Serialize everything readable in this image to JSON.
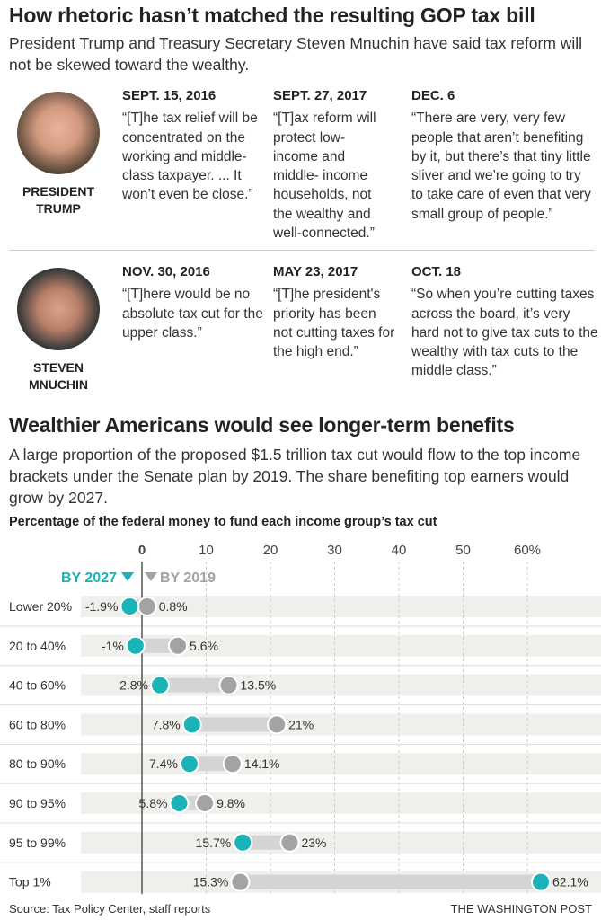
{
  "title": "How rhetoric hasn’t matched the resulting GOP tax bill",
  "dek": "President Trump and Treasury Secretary Steven Mnuchin have said tax reform will not be skewed toward the wealthy.",
  "people": [
    {
      "name": "PRESIDENT TRUMP",
      "quotes": [
        {
          "date": "SEPT. 15, 2016",
          "text": "“[T]he tax relief will be concentrated on the working and middle-class taxpayer. ... It won’t even be close.”"
        },
        {
          "date": "SEPT. 27, 2017",
          "text": "“[T]ax reform will protect low-income and middle- income households, not the wealthy and well-connected.”"
        },
        {
          "date": "DEC. 6",
          "text": "“There are very, very few people that aren’t benefiting by it, but there’s that tiny little sliver and we’re going to try to take care of even that very small group of people.”"
        }
      ]
    },
    {
      "name": "STEVEN MNUCHIN",
      "quotes": [
        {
          "date": "NOV. 30, 2016",
          "text": "“[T]here would be no absolute tax cut for the upper class.”"
        },
        {
          "date": "MAY 23, 2017",
          "text": "“[T]he president's priority has been not cutting taxes for the high end.”"
        },
        {
          "date": "OCT. 18",
          "text": "“So when you’re cutting taxes across the board, it’s very hard not to give tax cuts to the wealthy with tax cuts to the middle class.”"
        }
      ]
    }
  ],
  "section2": {
    "title": "Wealthier Americans would see longer-term benefits",
    "dek": "A large proportion of the proposed $1.5 trillion tax cut would flow to the top income brackets under the Senate plan by 2019. The share benefiting top earners would grow by 2027."
  },
  "chart_data": {
    "type": "dot-range",
    "title": "Percentage of the federal money to fund each income group’s tax cut",
    "xticks": [
      "0",
      "10",
      "20",
      "30",
      "40",
      "50",
      "60%"
    ],
    "xtick_values": [
      0,
      10,
      20,
      30,
      40,
      50,
      60
    ],
    "xlim": [
      -9,
      72
    ],
    "categories": [
      "Lower 20%",
      "20 to 40%",
      "40 to 60%",
      "60 to 80%",
      "80 to 90%",
      "90 to 95%",
      "95 to 99%",
      "Top 1%"
    ],
    "series": [
      {
        "name": "BY 2027",
        "color": "#1ab3b8",
        "values": [
          -1.9,
          -1,
          2.8,
          7.8,
          7.4,
          5.8,
          15.7,
          62.1
        ],
        "labels": [
          "-1.9%",
          "-1%",
          "2.8%",
          "7.8%",
          "7.4%",
          "5.8%",
          "15.7%",
          "62.1%"
        ]
      },
      {
        "name": "BY 2019",
        "color": "#a3a3a3",
        "values": [
          0.8,
          5.6,
          13.5,
          21,
          14.1,
          9.8,
          23,
          15.3
        ],
        "labels": [
          "0.8%",
          "5.6%",
          "13.5%",
          "21%",
          "14.1%",
          "9.8%",
          "23%",
          "15.3%"
        ]
      }
    ]
  },
  "source": "Source: Tax Policy Center, staff reports",
  "credit": "THE WASHINGTON POST"
}
